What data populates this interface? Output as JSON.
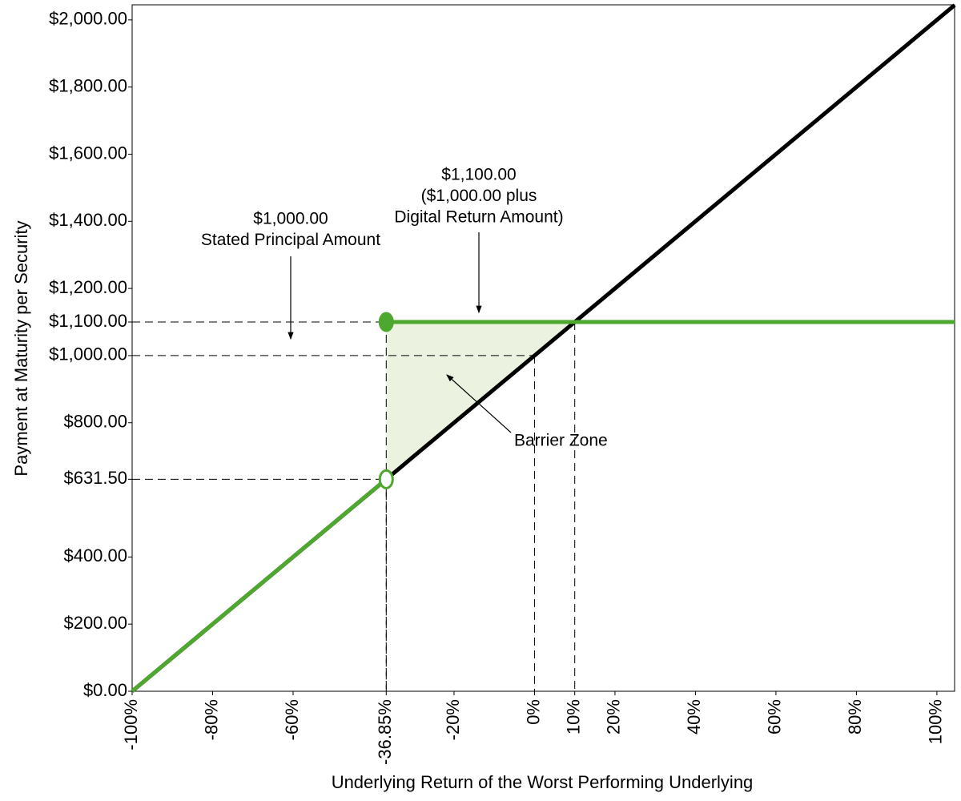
{
  "chart_data": {
    "type": "line",
    "x_label": "Underlying Return of the Worst Performing Underlying",
    "y_label": "Payment at Maturity per Security",
    "xlim": [
      -100,
      104.4
    ],
    "ylim": [
      0,
      2045
    ],
    "xticks": [
      {
        "value": -100,
        "label": "-100%"
      },
      {
        "value": -80,
        "label": "-80%"
      },
      {
        "value": -60,
        "label": "-60%"
      },
      {
        "value": -36.85,
        "label": "-36.85%"
      },
      {
        "value": -20,
        "label": "-20%"
      },
      {
        "value": 0,
        "label": "0%"
      },
      {
        "value": 10,
        "label": "10%"
      },
      {
        "value": 20,
        "label": "20%"
      },
      {
        "value": 40,
        "label": "40%"
      },
      {
        "value": 60,
        "label": "60%"
      },
      {
        "value": 80,
        "label": "80%"
      },
      {
        "value": 100,
        "label": "100%"
      }
    ],
    "yticks": [
      {
        "value": 0,
        "label": "$0.00"
      },
      {
        "value": 200,
        "label": "$200.00"
      },
      {
        "value": 400,
        "label": "$400.00"
      },
      {
        "value": 631.5,
        "label": "$631.50"
      },
      {
        "value": 800,
        "label": "$800.00"
      },
      {
        "value": 1000,
        "label": "$1,000.00"
      },
      {
        "value": 1100,
        "label": "$1,100.00"
      },
      {
        "value": 1200,
        "label": "$1,200.00"
      },
      {
        "value": 1400,
        "label": "$1,400.00"
      },
      {
        "value": 1600,
        "label": "$1,600.00"
      },
      {
        "value": 1800,
        "label": "$1,800.00"
      },
      {
        "value": 2000,
        "label": "$2,000.00"
      }
    ],
    "grid": false,
    "area": {
      "color": "#ebf3e0",
      "x": [
        -36.85,
        10,
        -36.85
      ],
      "values": [
        1100,
        1100,
        631.5
      ]
    },
    "series": [
      {
        "color": "#000000",
        "x": [
          -100,
          104.4
        ],
        "values": [
          0,
          2044
        ]
      },
      {
        "color": "#4ea72e",
        "x": [
          -100,
          -36.85
        ],
        "values": [
          0,
          631.5
        ]
      },
      {
        "color": "#4ea72e",
        "x": [
          -36.85,
          104.4
        ],
        "values": [
          1100,
          1100
        ]
      }
    ],
    "points": [
      {
        "color": "#4ea72e",
        "filled": true,
        "x": -36.85,
        "y": 1100
      },
      {
        "color": "#4ea72e",
        "filled": false,
        "x": -36.85,
        "y": 631.5
      }
    ],
    "annotations": [
      {
        "lines": [
          "$1,000.00",
          "Stated Principal Amount"
        ]
      },
      {
        "lines": [
          "$1,100.00",
          "($1,000.00 plus",
          "Digital Return Amount)"
        ]
      },
      {
        "lines": [
          "Barrier Zone"
        ]
      }
    ]
  }
}
